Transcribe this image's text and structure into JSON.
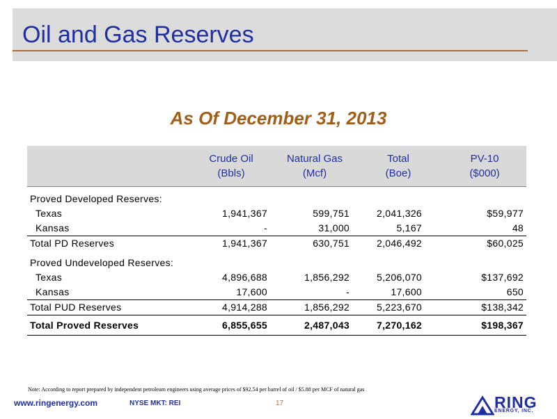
{
  "header": {
    "title": "Oil and Gas Reserves"
  },
  "subtitle": "As Of December 31, 2013",
  "table": {
    "columns": [
      {
        "line1": "Crude Oil",
        "line2": "(Bbls)"
      },
      {
        "line1": "Natural Gas",
        "line2": "(Mcf)"
      },
      {
        "line1": "Total",
        "line2": "(Boe)"
      },
      {
        "line1": "PV-10",
        "line2": "($000)"
      }
    ],
    "rows": [
      {
        "label": "Proved Developed Reserves:",
        "values": [
          "",
          "",
          "",
          ""
        ]
      },
      {
        "label": "Texas",
        "values": [
          "1,941,367",
          "599,751",
          "2,041,326",
          "$59,977"
        ]
      },
      {
        "label": "Kansas",
        "values": [
          "-",
          "31,000",
          "5,167",
          "48"
        ]
      },
      {
        "label": "Total PD Reserves",
        "values": [
          "1,941,367",
          "630,751",
          "2,046,492",
          "$60,025"
        ]
      },
      {
        "label": "Proved Undeveloped Reserves:",
        "values": [
          "",
          "",
          "",
          ""
        ]
      },
      {
        "label": "Texas",
        "values": [
          "4,896,688",
          "1,856,292",
          "5,206,070",
          "$137,692"
        ]
      },
      {
        "label": "Kansas",
        "values": [
          "17,600",
          "-",
          "17,600",
          "650"
        ]
      },
      {
        "label": "Total PUD Reserves",
        "values": [
          "4,914,288",
          "1,856,292",
          "5,223,670",
          "$138,342"
        ]
      },
      {
        "label": "Total Proved Reserves",
        "values": [
          "6,855,655",
          "2,487,043",
          "7,270,162",
          "$198,367"
        ]
      }
    ]
  },
  "note": "Note: According to report prepared by independent petroleum engineers using average prices of $92.54 per barrel of oil / $5.88 per MCF of natural gas",
  "footer": {
    "url": "www.ringenergy.com",
    "ticker": "NYSE MKT: REI",
    "page_number": "17",
    "logo_name": "RING",
    "logo_sub": "ENERGY, INC."
  },
  "colors": {
    "title": "#1f2ea0",
    "subtitle": "#a05f18",
    "rule": "#a0714a",
    "header_bg": "#dcdcdc",
    "table_head_bg": "#d9d9d9"
  }
}
